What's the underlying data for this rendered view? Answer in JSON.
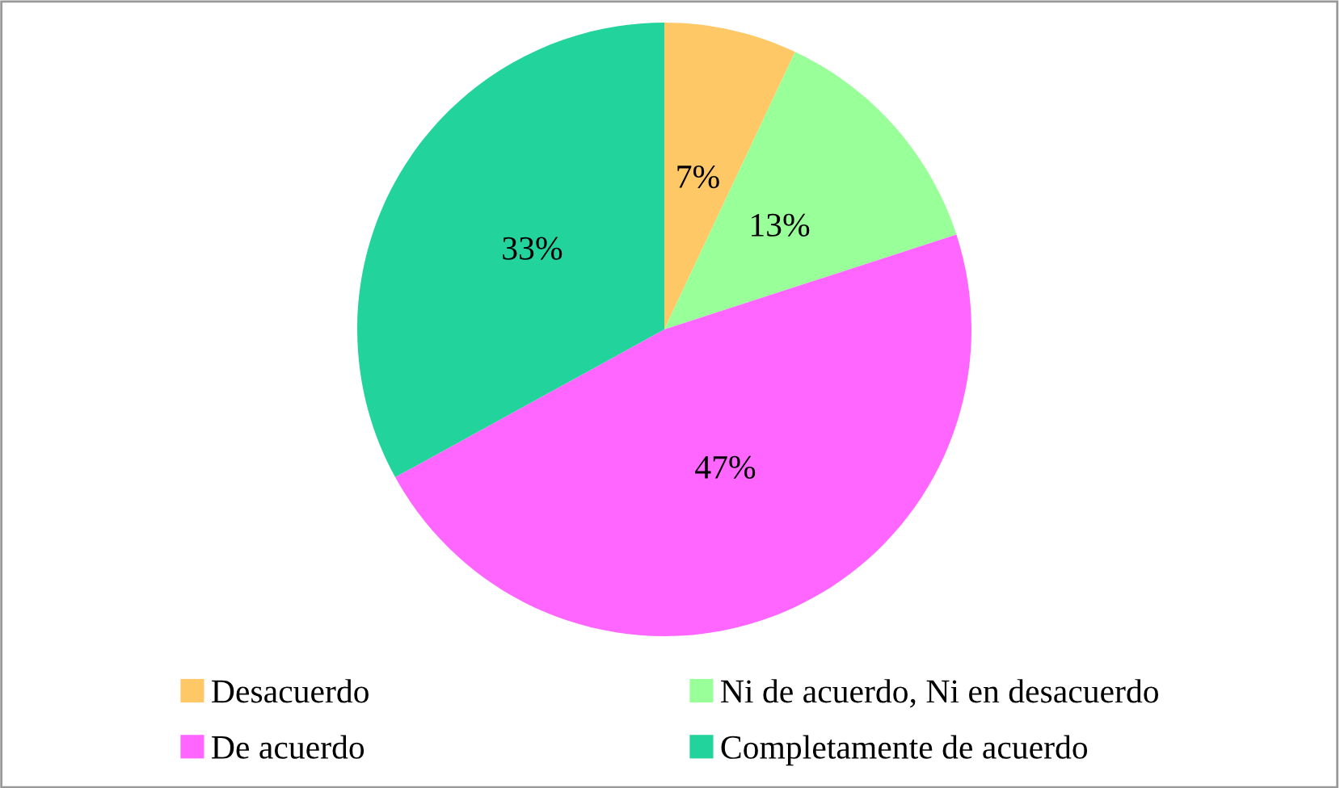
{
  "chart_data": {
    "type": "pie",
    "categories": [
      "Desacuerdo",
      "Ni de acuerdo, Ni en desacuerdo",
      "De acuerdo",
      "Completamente de acuerdo"
    ],
    "values": [
      7,
      13,
      47,
      33
    ],
    "colors": [
      "#ffc866",
      "#99ff99",
      "#ff66ff",
      "#22d49c"
    ],
    "value_labels": [
      "7%",
      "13%",
      "47%",
      "33%"
    ],
    "legend": "bottom"
  }
}
